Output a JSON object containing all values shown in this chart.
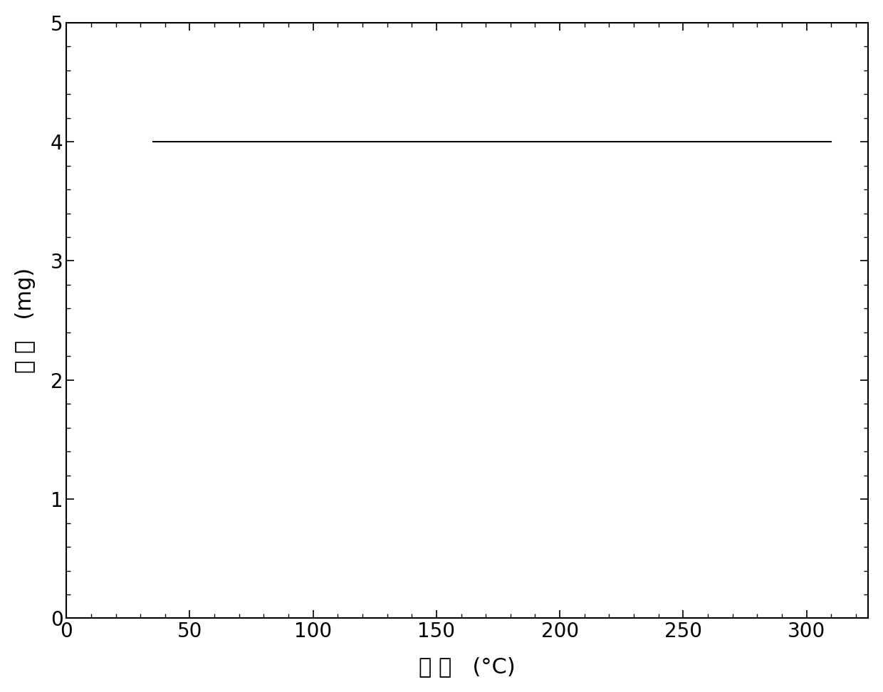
{
  "title": "",
  "xlabel": "温 度   (°C)",
  "ylabel": "质 量   (mg)",
  "xlim": [
    0,
    325
  ],
  "ylim": [
    0,
    5
  ],
  "xticks": [
    0,
    50,
    100,
    150,
    200,
    250,
    300
  ],
  "yticks": [
    0,
    1,
    2,
    3,
    4,
    5
  ],
  "x_minor_ticks": 5,
  "y_minor_ticks": 5,
  "line_x": [
    35,
    310
  ],
  "line_y": [
    4.0,
    4.0
  ],
  "line_color": "#000000",
  "line_width": 1.5,
  "background_color": "#ffffff",
  "xlabel_fontsize": 22,
  "ylabel_fontsize": 22,
  "tick_fontsize": 20,
  "tick_font": "Arial",
  "label_font": "SimSun"
}
